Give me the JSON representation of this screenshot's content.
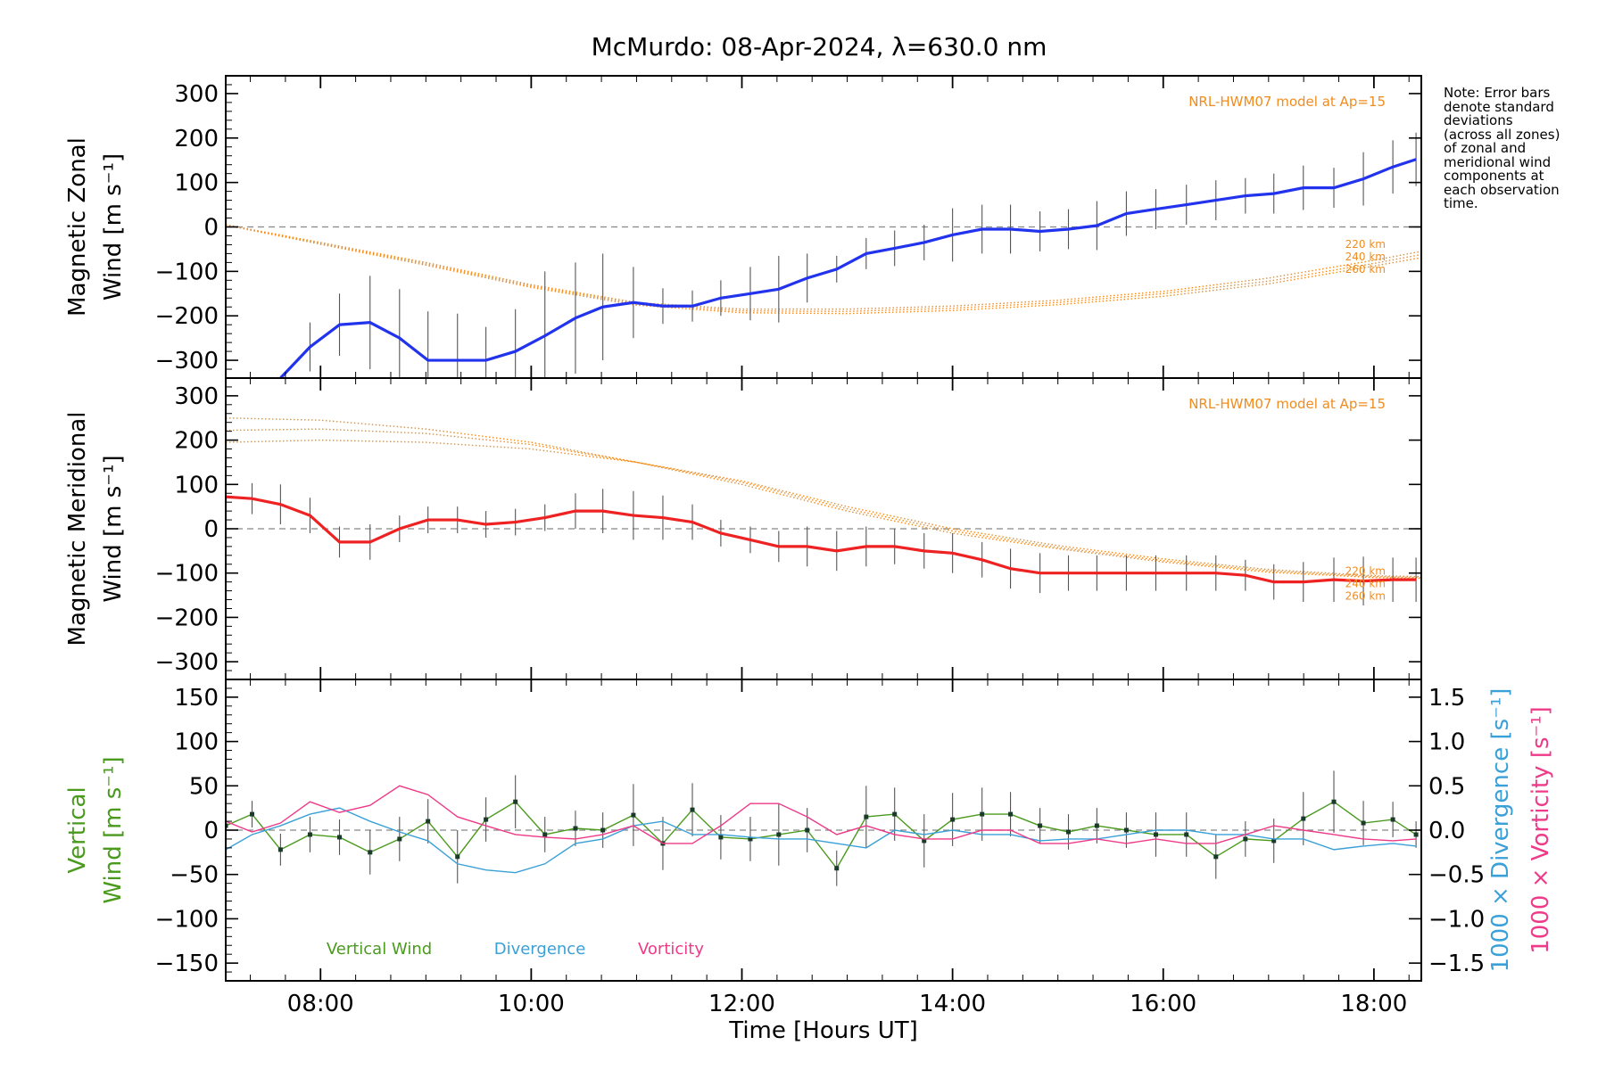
{
  "title": "McMurdo: 08-Apr-2024, λ=630.0 nm",
  "note_lines": [
    "Note: Error bars",
    "denote standard",
    "deviations",
    "(across all zones)",
    "of zonal and",
    "meridional wind",
    "components at",
    "each observation",
    "time."
  ],
  "colors": {
    "zonal": "#2233ee",
    "meridional": "#ee2222",
    "model": "#f08c1e",
    "vertical": "#4a9a1e",
    "divergence": "#3aa0d8",
    "vorticity": "#ee3a88",
    "errorbar": "#555555",
    "zero_line": "#888888"
  },
  "chart_data": [
    {
      "type": "line",
      "ylabel_line1": "Magnetic Zonal",
      "ylabel_line2": "Wind [m s⁻¹]",
      "model_label": "NRL-HWM07 model at Ap=15",
      "altitude_labels": [
        "220 km",
        "240 km",
        "260 km"
      ],
      "xlim": [
        7.1,
        18.45
      ],
      "ylim": [
        -340,
        340
      ],
      "yticks": [
        -300,
        -200,
        -100,
        0,
        100,
        200,
        300
      ],
      "x": [
        7.35,
        7.62,
        7.9,
        8.18,
        8.47,
        8.75,
        9.02,
        9.3,
        9.57,
        9.85,
        10.13,
        10.42,
        10.68,
        10.97,
        11.25,
        11.53,
        11.8,
        12.08,
        12.35,
        12.62,
        12.9,
        13.18,
        13.45,
        13.73,
        14.0,
        14.28,
        14.55,
        14.83,
        15.1,
        15.37,
        15.65,
        15.93,
        16.22,
        16.5,
        16.78,
        17.05,
        17.33,
        17.62,
        17.9,
        18.18,
        18.4
      ],
      "series": [
        {
          "values": [
            null,
            -340,
            -270,
            -220,
            -215,
            -250,
            -300,
            -300,
            -300,
            -280,
            -245,
            -205,
            -180,
            -170,
            -178,
            -178,
            -160,
            -150,
            -140,
            -115,
            -95,
            -60,
            -48,
            -35,
            -18,
            -5,
            -5,
            -10,
            -5,
            3,
            30,
            40,
            50,
            60,
            70,
            75,
            88,
            88,
            108,
            135,
            152
          ],
          "errors": [
            null,
            0,
            55,
            70,
            105,
            110,
            110,
            105,
            75,
            95,
            145,
            125,
            120,
            80,
            40,
            35,
            40,
            60,
            75,
            55,
            30,
            35,
            40,
            40,
            60,
            55,
            55,
            45,
            45,
            55,
            50,
            45,
            45,
            45,
            40,
            45,
            50,
            45,
            60,
            60,
            60
          ]
        }
      ],
      "model_curves": [
        {
          "altitude": "220 km",
          "x": [
            7.1,
            8.0,
            9.0,
            10.0,
            11.0,
            12.0,
            13.0,
            14.0,
            15.0,
            16.0,
            17.0,
            18.0,
            18.45
          ],
          "values": [
            5,
            -35,
            -80,
            -130,
            -170,
            -185,
            -185,
            -178,
            -165,
            -145,
            -115,
            -75,
            -55
          ]
        },
        {
          "altitude": "240 km",
          "x": [
            7.1,
            8.0,
            9.0,
            10.0,
            11.0,
            12.0,
            13.0,
            14.0,
            15.0,
            16.0,
            17.0,
            18.0,
            18.45
          ],
          "values": [
            5,
            -37,
            -83,
            -133,
            -173,
            -189,
            -190,
            -183,
            -170,
            -150,
            -122,
            -82,
            -62
          ]
        },
        {
          "altitude": "260 km",
          "x": [
            7.1,
            8.0,
            9.0,
            10.0,
            11.0,
            12.0,
            13.0,
            14.0,
            15.0,
            16.0,
            17.0,
            18.0,
            18.45
          ],
          "values": [
            4,
            -39,
            -86,
            -136,
            -176,
            -193,
            -195,
            -188,
            -175,
            -156,
            -128,
            -88,
            -69
          ]
        }
      ]
    },
    {
      "type": "line",
      "ylabel_line1": "Magnetic Meridional",
      "ylabel_line2": "Wind [m s⁻¹]",
      "model_label": "NRL-HWM07 model at Ap=15",
      "altitude_labels": [
        "220 km",
        "240 km",
        "260 km"
      ],
      "xlim": [
        7.1,
        18.45
      ],
      "ylim": [
        -340,
        340
      ],
      "yticks": [
        -300,
        -200,
        -100,
        0,
        100,
        200,
        300
      ],
      "x": [
        7.1,
        7.35,
        7.62,
        7.9,
        8.18,
        8.47,
        8.75,
        9.02,
        9.3,
        9.57,
        9.85,
        10.13,
        10.42,
        10.68,
        10.97,
        11.25,
        11.53,
        11.8,
        12.08,
        12.35,
        12.62,
        12.9,
        13.18,
        13.45,
        13.73,
        14.0,
        14.28,
        14.55,
        14.83,
        15.1,
        15.37,
        15.65,
        15.93,
        16.22,
        16.5,
        16.78,
        17.05,
        17.33,
        17.62,
        17.9,
        18.18,
        18.4
      ],
      "series": [
        {
          "values": [
            72,
            68,
            55,
            30,
            -30,
            -30,
            0,
            20,
            20,
            10,
            15,
            25,
            40,
            40,
            30,
            25,
            15,
            -10,
            -25,
            -40,
            -40,
            -50,
            -40,
            -40,
            -50,
            -55,
            -70,
            -90,
            -100,
            -100,
            -100,
            -100,
            -100,
            -100,
            -100,
            -105,
            -120,
            -120,
            -115,
            -118,
            -115,
            -115
          ],
          "errors": [
            0,
            35,
            45,
            40,
            35,
            40,
            30,
            30,
            30,
            30,
            30,
            30,
            40,
            50,
            55,
            50,
            40,
            30,
            30,
            35,
            45,
            45,
            45,
            40,
            40,
            45,
            40,
            45,
            45,
            40,
            40,
            40,
            40,
            40,
            40,
            35,
            40,
            45,
            50,
            55,
            50,
            50
          ]
        }
      ],
      "model_curves": [
        {
          "altitude": "220 km",
          "x": [
            7.1,
            8.0,
            9.0,
            10.0,
            11.0,
            12.0,
            13.0,
            14.0,
            15.0,
            16.0,
            17.0,
            18.0,
            18.45
          ],
          "values": [
            250,
            245,
            225,
            195,
            150,
            100,
            40,
            -10,
            -45,
            -75,
            -98,
            -110,
            -112
          ]
        },
        {
          "altitude": "240 km",
          "x": [
            7.1,
            8.0,
            9.0,
            10.0,
            11.0,
            12.0,
            13.0,
            14.0,
            15.0,
            16.0,
            17.0,
            18.0,
            18.45
          ],
          "values": [
            222,
            225,
            215,
            190,
            150,
            105,
            45,
            -5,
            -42,
            -72,
            -95,
            -108,
            -110
          ]
        },
        {
          "altitude": "260 km",
          "x": [
            7.1,
            8.0,
            9.0,
            10.0,
            11.0,
            12.0,
            13.0,
            14.0,
            15.0,
            16.0,
            17.0,
            18.0,
            18.45
          ],
          "values": [
            195,
            200,
            195,
            180,
            150,
            108,
            50,
            0,
            -38,
            -68,
            -92,
            -106,
            -108
          ]
        }
      ]
    },
    {
      "type": "line",
      "ylabel_line1": "Vertical",
      "ylabel_line2": "Wind [m s⁻¹]",
      "right_ylabel_1": "1000 × Divergence [s⁻¹]",
      "right_ylabel_2": "1000 × Vorticity [s⁻¹]",
      "xlabel": "Time [Hours UT]",
      "xlim": [
        7.1,
        18.45
      ],
      "ylim": [
        -170,
        170
      ],
      "yticks": [
        -150,
        -100,
        -50,
        0,
        50,
        100,
        150
      ],
      "y2lim": [
        -1.7,
        1.7
      ],
      "y2ticks": [
        -1.5,
        -1.0,
        -0.5,
        0.0,
        0.5,
        1.0,
        1.5
      ],
      "y2ticklabels": [
        "−1.5",
        "−1.0",
        "−0.5",
        "0.0",
        "0.5",
        "1.0",
        "1.5"
      ],
      "xticks": [
        8,
        10,
        12,
        14,
        16,
        18
      ],
      "xticklabels": [
        "08:00",
        "10:00",
        "12:00",
        "14:00",
        "16:00",
        "18:00"
      ],
      "legend": [
        "Vertical Wind",
        "Divergence",
        "Vorticity"
      ],
      "x": [
        7.1,
        7.35,
        7.62,
        7.9,
        8.18,
        8.47,
        8.75,
        9.02,
        9.3,
        9.57,
        9.85,
        10.13,
        10.42,
        10.68,
        10.97,
        11.25,
        11.53,
        11.8,
        12.08,
        12.35,
        12.62,
        12.9,
        13.18,
        13.45,
        13.73,
        14.0,
        14.28,
        14.55,
        14.83,
        15.1,
        15.37,
        15.65,
        15.93,
        16.22,
        16.5,
        16.78,
        17.05,
        17.33,
        17.62,
        17.9,
        18.18,
        18.4
      ],
      "series": [
        {
          "name": "Vertical Wind",
          "axis": "left",
          "values": [
            5,
            18,
            -22,
            -5,
            -8,
            -25,
            -10,
            10,
            -30,
            12,
            32,
            -5,
            2,
            0,
            17,
            -15,
            23,
            -8,
            -10,
            -5,
            0,
            -43,
            15,
            18,
            -12,
            12,
            18,
            18,
            5,
            -2,
            5,
            0,
            -5,
            -5,
            -30,
            -10,
            -12,
            13,
            32,
            8,
            12,
            -5
          ],
          "errors": [
            0,
            15,
            18,
            20,
            20,
            25,
            25,
            25,
            30,
            25,
            30,
            20,
            20,
            20,
            35,
            30,
            30,
            25,
            25,
            35,
            25,
            20,
            35,
            30,
            30,
            30,
            30,
            25,
            20,
            20,
            20,
            20,
            25,
            25,
            25,
            20,
            25,
            30,
            35,
            25,
            20,
            15
          ]
        },
        {
          "name": "Divergence",
          "axis": "right",
          "values": [
            -0.22,
            -0.05,
            0.05,
            0.18,
            0.25,
            0.1,
            -0.02,
            -0.12,
            -0.38,
            -0.45,
            -0.48,
            -0.38,
            -0.15,
            -0.1,
            0.05,
            0.1,
            -0.05,
            -0.05,
            -0.08,
            -0.1,
            -0.1,
            -0.15,
            -0.2,
            0.0,
            -0.05,
            0.0,
            -0.05,
            -0.05,
            -0.12,
            -0.1,
            -0.1,
            -0.05,
            0.0,
            0.0,
            -0.05,
            -0.05,
            -0.1,
            -0.1,
            -0.22,
            -0.18,
            -0.15,
            -0.18
          ]
        },
        {
          "name": "Vorticity",
          "axis": "right",
          "values": [
            0.1,
            -0.02,
            0.08,
            0.32,
            0.2,
            0.28,
            0.5,
            0.4,
            0.15,
            0.05,
            -0.05,
            -0.08,
            -0.1,
            -0.05,
            0.05,
            -0.15,
            -0.15,
            0.05,
            0.3,
            0.3,
            0.15,
            -0.05,
            0.05,
            -0.05,
            -0.1,
            -0.1,
            0.0,
            0.0,
            -0.15,
            -0.15,
            -0.1,
            -0.15,
            -0.1,
            -0.15,
            -0.15,
            -0.05,
            0.05,
            0.0,
            -0.05,
            -0.1,
            -0.12,
            -0.1
          ]
        }
      ]
    }
  ]
}
